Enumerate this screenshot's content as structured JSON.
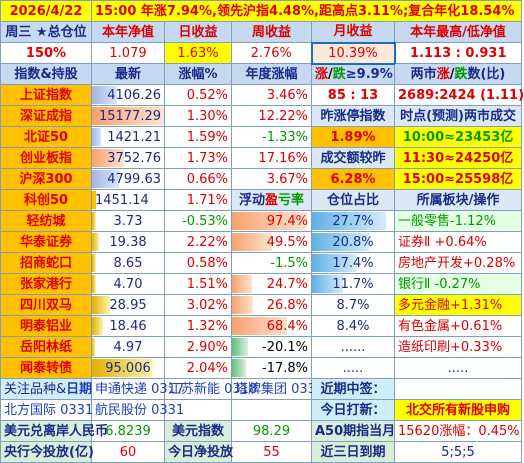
{
  "title_row": {
    "date": "2026/4/22",
    "summary": "15:00 年涨7.94%,领先沪指4.48%,距高点3.11%;复合年化18.54%"
  },
  "header1": [
    "周三 ★总仓位",
    "本年净值",
    "日收益",
    "周收益",
    "月收益",
    "本年最高/低净值"
  ],
  "stats1": {
    "position": "150%",
    "nav": "1.079",
    "day": "1.63%",
    "week": "2.76%",
    "month": "10.39%",
    "hilo": "1.113 : 0.931"
  },
  "header2": {
    "c1": "指数&持股",
    "c2": "最新",
    "c3": "涨幅%",
    "c4": "年度涨幅",
    "c5a": "涨",
    "c5b": "/",
    "c5c": "跌",
    "c5d": "≥9.9%",
    "c6a": "两市",
    "c6b": "涨",
    "c6c": "/",
    "c6d": "跌",
    "c6e": "数(比)"
  },
  "indices": [
    {
      "name": "上证指数",
      "price": "4106.26",
      "chg": "0.52%",
      "year": "3.46%",
      "fill": 0.35,
      "style": "blue"
    },
    {
      "name": "深证成指",
      "price": "15177.29",
      "chg": "1.30%",
      "year": "12.22%",
      "fill": 1.0,
      "style": "peach"
    },
    {
      "name": "北证50",
      "price": "1421.21",
      "chg": "1.59%",
      "year": "-1.33%",
      "fill": 0.12,
      "style": "blue"
    },
    {
      "name": "创业板指",
      "price": "3752.76",
      "chg": "1.73%",
      "year": "17.16%",
      "fill": 0.45,
      "style": "peach"
    },
    {
      "name": "沪深300",
      "price": "4799.63",
      "chg": "0.66%",
      "year": "3.67%",
      "fill": 0.38,
      "style": "blue"
    },
    {
      "name": "科创50",
      "price": "1451.14",
      "chg": "1.71%"
    }
  ],
  "right_block": {
    "limit": "85 : 13",
    "adv_dec": "2689:2424 (1.11)",
    "label_limit_idx": "昨涨停指数",
    "label_flow": "时点(预测)两市成交",
    "limit_idx": "1.89%",
    "flow1": "10:00≈23453亿",
    "label_turn": "成交额较昨",
    "flow2": "11:30≈24250亿",
    "turn": "6.28%",
    "flow3": "15:00≈25598亿"
  },
  "header3": {
    "float_a": "浮动",
    "float_b": "盈",
    "float_c": "亏率",
    "weight": "仓位占比",
    "sector": "所属板块/操作"
  },
  "holdings": [
    {
      "name": "轻纺城",
      "price": "3.73",
      "chg": "-0.53%",
      "pnl": "97.4%",
      "pnl_fill": 0.95,
      "pnl_style": "peach",
      "weight": "27.7%",
      "w_fill": 0.9,
      "sector": "一般零售-1.12%",
      "s_color": "grn",
      "s_bg": "lgr",
      "fill": 0.05
    },
    {
      "name": "华泰证券",
      "price": "19.38",
      "chg": "2.22%",
      "pnl": "49.5%",
      "pnl_fill": 0.5,
      "pnl_style": "peach",
      "weight": "20.8%",
      "w_fill": 0.7,
      "sector": "证券Ⅱ +0.64%",
      "s_color": "red",
      "s_bg": "",
      "fill": 0.1
    },
    {
      "name": "招商蛇口",
      "price": "8.65",
      "chg": "0.58%",
      "pnl": "-1.5%",
      "pnl_fill": 0.0,
      "pnl_style": "green",
      "weight": "17.4%",
      "w_fill": 0.55,
      "sector": "房地产开发+0.28%",
      "s_color": "red",
      "s_bg": "",
      "fill": 0.05
    },
    {
      "name": "张家港行",
      "price": "4.70",
      "chg": "1.51%",
      "pnl": "24.7%",
      "pnl_fill": 0.25,
      "pnl_style": "peach",
      "weight": "11.7%",
      "w_fill": 0.38,
      "sector": "银行Ⅱ -0.27%",
      "s_color": "grn",
      "s_bg": "lgr",
      "fill": 0.05
    },
    {
      "name": "四川双马",
      "price": "28.95",
      "chg": "3.02%",
      "pnl": "26.8%",
      "pnl_fill": 0.27,
      "pnl_style": "peach",
      "weight": "8.7%",
      "w_fill": 0.0,
      "sector": "多元金融+1.31%",
      "s_color": "red",
      "s_bg": "y",
      "fill": 0.25
    },
    {
      "name": "明泰铝业",
      "price": "18.46",
      "chg": "1.32%",
      "pnl": "68.4%",
      "pnl_fill": 0.7,
      "pnl_style": "peach",
      "weight": "8.4%",
      "w_fill": 0.0,
      "sector": "有色金属+0.61%",
      "s_color": "red",
      "s_bg": "",
      "fill": 0.15
    },
    {
      "name": "岳阳林纸",
      "price": "4.97",
      "chg": "2.90%",
      "pnl": "-20.1%",
      "pnl_fill": 0.2,
      "pnl_style": "green",
      "weight": "......",
      "w_fill": 0.0,
      "sector": "造纸印刷+0.33%",
      "s_color": "red",
      "s_bg": "",
      "fill": 0.04
    },
    {
      "name": "闻泰转债",
      "price": "95.006",
      "chg": "2.04%",
      "pnl": "-17.8%",
      "pnl_fill": 0.18,
      "pnl_style": "green",
      "weight": ".....",
      "w_fill": 0.0,
      "sector": ".....",
      "s_color": "blk",
      "s_bg": "",
      "fill": 0.85
    }
  ],
  "footer": {
    "watch_label_a": "关注品种&",
    "watch_label_b": "日期",
    "watch1": "申通快递 0317",
    "watch2": "江苏新能 0318",
    "watch3": "塔牌集团 0330",
    "watch4": "北方国际 0331",
    "watch5": "航民股份 0331",
    "recent_new_label": "近期中签：",
    "recent_new": "",
    "today_label": "今日打新：",
    "today_new": "北交所有新股申购",
    "usd_label": "美元兑离岸人民币",
    "usd": "6.8239",
    "dxy_label": "美元指数",
    "dxy": "98.29",
    "a50_label": "A50期指当月",
    "a50": "15620涨幅：0.45%",
    "pboc_label": "央行今投放(亿)",
    "pboc": "60",
    "pboc_net_label": "今日净投放",
    "pboc_net": "55",
    "due_label": "近三日到期",
    "due": "5;5;5"
  }
}
